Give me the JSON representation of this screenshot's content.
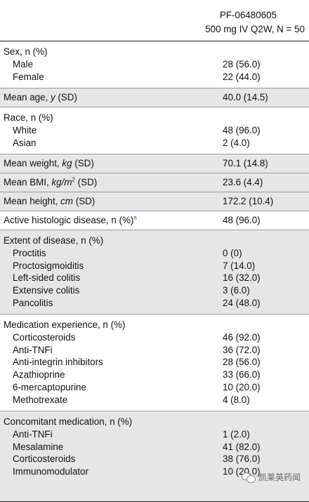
{
  "header": {
    "line1": "PF-06480605",
    "line2": "500 mg IV Q2W, N = 50"
  },
  "sex": {
    "title": "Sex, n (%)",
    "rows": [
      {
        "label": "Male",
        "value": "28 (56.0)"
      },
      {
        "label": "Female",
        "value": "22 (44.0)"
      }
    ]
  },
  "age": {
    "label_pre": "Mean age, ",
    "label_unit": "y",
    "label_post": " (SD)",
    "value": "40.0 (14.5)"
  },
  "race": {
    "title": "Race, n (%)",
    "rows": [
      {
        "label": "White",
        "value": "48 (96.0)"
      },
      {
        "label": "Asian",
        "value": "2 (4.0)"
      }
    ]
  },
  "weight": {
    "label_pre": "Mean weight, ",
    "label_unit": "kg",
    "label_post": " (SD)",
    "value": "70.1 (14.8)"
  },
  "bmi": {
    "label_pre": "Mean BMI, ",
    "label_unit": "kg/m",
    "label_sup": "2",
    "label_post": " (SD)",
    "value": "23.6 (4.4)"
  },
  "height": {
    "label_pre": "Mean height, ",
    "label_unit": "cm",
    "label_post": " (SD)",
    "value": "172.2 (10.4)"
  },
  "histologic": {
    "label": "Active histologic disease, n (%)",
    "footnote": "a",
    "value": "48 (96.0)"
  },
  "extent": {
    "title": "Extent of disease, n (%)",
    "rows": [
      {
        "label": "Proctitis",
        "value": "0 (0)"
      },
      {
        "label": "Proctosigmoiditis",
        "value": "7 (14.0)"
      },
      {
        "label": "Left-sided colitis",
        "value": "16 (32.0)"
      },
      {
        "label": "Extensive colitis",
        "value": "3 (6.0)"
      },
      {
        "label": "Pancolitis",
        "value": "24 (48.0)"
      }
    ]
  },
  "medication": {
    "title": "Medication experience, n (%)",
    "rows": [
      {
        "label": "Corticosteroids",
        "value": "46 (92.0)"
      },
      {
        "label": "Anti-TNFi",
        "value": "36 (72.0)"
      },
      {
        "label": "Anti-integrin inhibitors",
        "value": "28 (56.0)"
      },
      {
        "label": "Azathioprine",
        "value": "33 (66.0)"
      },
      {
        "label": "6-mercaptopurine",
        "value": "10 (20.0)"
      },
      {
        "label": "Methotrexate",
        "value": "4 (8.0)"
      }
    ]
  },
  "concomitant": {
    "title": "Concomitant medication, n (%)",
    "rows": [
      {
        "label": "Anti-TNFi",
        "value": "1 (2.0)"
      },
      {
        "label": "Mesalamine",
        "value": "41 (82.0)"
      },
      {
        "label": "Corticosteroids",
        "value": "38 (76.0)"
      },
      {
        "label": "Immunomodulator",
        "value": "10 (20.0)"
      }
    ]
  },
  "watermark": {
    "text": "凯莱英药闻",
    "icon": "wechat-icon"
  }
}
